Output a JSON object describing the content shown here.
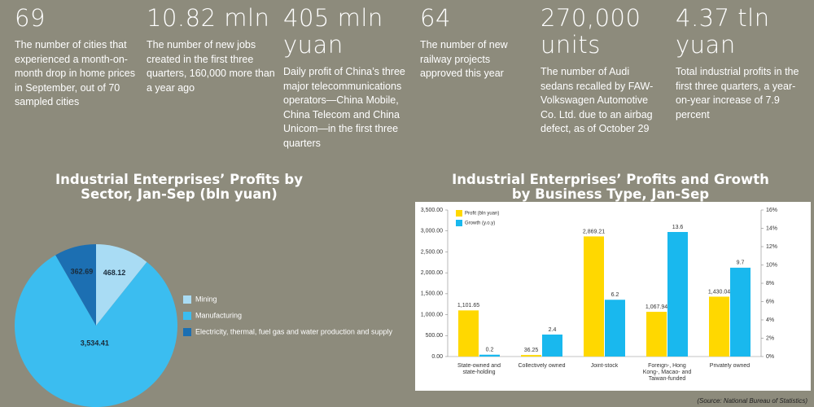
{
  "stats": [
    {
      "value": "69",
      "text": "The number of cities that experienced a month-on-month drop in home prices in September, out of 70 sampled cities"
    },
    {
      "value": "10.82 mln",
      "text": "The number of new jobs created in the first three quarters, 160,000 more than a year ago"
    },
    {
      "value": "405 mln yuan",
      "text": "Daily profit of China’s three major telecommunications operators—China Mobile, China Telecom and China Unicom—in the first three quarters"
    },
    {
      "value": "64",
      "text": "The number of new railway projects approved this year"
    },
    {
      "value": "270,000 units",
      "text": "The number of Audi sedans recalled by FAW-Volkswagen Automotive Co. Ltd. due to an airbag defect, as of October 29"
    },
    {
      "value": "4.37 tln yuan",
      "text": "Total industrial profits in the first three quarters, a year-on-year increase of 7.9 percent"
    }
  ],
  "chart_data": [
    {
      "type": "pie",
      "title": "Industrial Enterprises’ Profits by Sector, Jan-Sep (bln yuan)",
      "categories": [
        "Mining",
        "Manufacturing",
        "Electricity, thermal, fuel gas and water production and supply"
      ],
      "values": [
        468.12,
        3534.41,
        362.69
      ],
      "value_labels": [
        "468.12",
        "3,534.41",
        "362.69"
      ],
      "colors": [
        "#a9dcf4",
        "#3bbdf0",
        "#1c6fb2"
      ]
    },
    {
      "type": "bar",
      "title": "Industrial Enterprises’ Profits and Growth by Business Type, Jan-Sep",
      "categories": [
        "State-owned and state-holding",
        "Collectively owned",
        "Joint-stock",
        "Foreign-, Hong Kong-, Macao- and Taiwan-funded",
        "Privately owned"
      ],
      "series": [
        {
          "name": "Profit (bln yuan)",
          "color": "#ffd800",
          "values": [
            1101.65,
            36.25,
            2869.21,
            1067.94,
            1430.04
          ],
          "value_labels": [
            "1,101.65",
            "36.25",
            "2,869.21",
            "1,067.94",
            "1,430.04"
          ]
        },
        {
          "name": "Growth (y.o.y)",
          "color": "#19b8ee",
          "axis": "y2",
          "values": [
            0.2,
            2.4,
            6.2,
            13.6,
            9.7
          ]
        }
      ],
      "ylim": [
        0,
        3500
      ],
      "yticks": [
        {
          "value": 0,
          "label": "0.00"
        },
        {
          "value": 500,
          "label": "500.00"
        },
        {
          "value": 1000,
          "label": "1,000.00"
        },
        {
          "value": 1500,
          "label": "1,500.00"
        },
        {
          "value": 2000,
          "label": "2,000.00"
        },
        {
          "value": 2500,
          "label": "2,500.00"
        },
        {
          "value": 3000,
          "label": "3,000.00"
        },
        {
          "value": 3500,
          "label": "3,500.00"
        }
      ],
      "y2lim": [
        0,
        16
      ],
      "y2ticks": [
        {
          "value": 0,
          "label": "0%"
        },
        {
          "value": 2,
          "label": "2%"
        },
        {
          "value": 4,
          "label": "4%"
        },
        {
          "value": 6,
          "label": "6%"
        },
        {
          "value": 8,
          "label": "8%"
        },
        {
          "value": 10,
          "label": "10%"
        },
        {
          "value": 12,
          "label": "12%"
        },
        {
          "value": 14,
          "label": "14%"
        },
        {
          "value": 16,
          "label": "16%"
        }
      ]
    }
  ],
  "source": "(Source: National Bureau of Statistics)"
}
